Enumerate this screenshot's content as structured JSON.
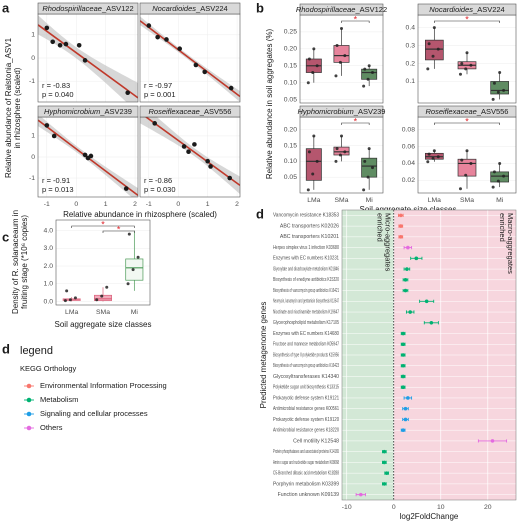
{
  "chart_data": [
    {
      "type": "scatter",
      "panel_label": "a",
      "x_label": "Relative abundance in rhizosphere (scaled)",
      "y_label": [
        "Relative abundance of Ralstonia_ASV1",
        "in rhizosphere (scaled)"
      ],
      "xlim": [
        -1.3,
        2.1
      ],
      "xticks": [
        -1,
        0,
        1,
        2
      ],
      "ylim": [
        -1.9,
        1.9
      ],
      "yticks": [
        -1,
        0,
        1
      ],
      "point_color": "#1a1a1a",
      "fit_color": "#c0392b",
      "band_color": "#bdbdbd",
      "facets": [
        {
          "title": "Rhodospirillaceae_ASV122",
          "x": [
            -1.0,
            -0.8,
            -0.55,
            -0.35,
            0.1,
            0.3,
            1.75
          ],
          "y": [
            1.3,
            0.7,
            0.55,
            0.6,
            0.55,
            -0.1,
            -1.5
          ],
          "annotations": [
            "r = -0.83",
            "p = 0.040"
          ]
        },
        {
          "title": "Nocardioides_ASV224",
          "x": [
            -1.0,
            -0.7,
            -0.4,
            0.05,
            0.6,
            0.9,
            1.8
          ],
          "y": [
            1.4,
            0.9,
            0.8,
            0.4,
            -0.3,
            -0.6,
            -1.3
          ],
          "annotations": [
            "r = -0.97",
            "p = 0.001"
          ]
        },
        {
          "title": "Hyphomicrobium_ASV239",
          "x": [
            -1.0,
            -0.75,
            0.3,
            0.4,
            0.5,
            1.7
          ],
          "y": [
            1.5,
            1.0,
            0.1,
            -0.05,
            0.05,
            -1.5
          ],
          "annotations": [
            "r = -0.91",
            "p = 0.013"
          ]
        },
        {
          "title": "Roseiflexaceae_ASV556",
          "x": [
            -0.8,
            0.2,
            0.35,
            0.55,
            1.0,
            1.1,
            1.75
          ],
          "y": [
            1.6,
            0.5,
            0.25,
            0.6,
            -0.2,
            -0.45,
            -1.0
          ],
          "annotations": [
            "r = -0.86",
            "p = 0.030"
          ]
        }
      ]
    },
    {
      "type": "box",
      "panel_label": "b",
      "x_label": "Soil aggregate size classes",
      "y_label": "Relative abundance in soil aggregates (%)",
      "categories": [
        "LMa",
        "SMa",
        "Mi"
      ],
      "fill_colors": [
        "#b5566e",
        "#e7849c",
        "#5f8c62"
      ],
      "stroke_colors": [
        "#333333",
        "#333333",
        "#333333"
      ],
      "facets": [
        {
          "title": "Rhodospirillaceae_ASV122",
          "ylim": [
            0.04,
            0.3
          ],
          "yticks": [
            0.05,
            {
              "value": 0.1,
              "label": "0.10"
            },
            0.15,
            {
              "value": 0.2,
              "label": "0.20"
            },
            0.25
          ],
          "groups": [
            {
              "box": [
                0.1,
                0.13,
                0.15,
                0.17,
                0.2
              ],
              "points": [
                0.1,
                0.13,
                0.15,
                0.17,
                0.2
              ]
            },
            {
              "box": [
                0.12,
                0.16,
                0.18,
                0.21,
                0.26
              ],
              "points": [
                0.12,
                0.16,
                0.18,
                0.21,
                0.26
              ]
            },
            {
              "box": [
                0.09,
                0.11,
                0.13,
                0.14,
                0.15
              ],
              "points": [
                0.09,
                0.11,
                0.13,
                0.14,
                0.15
              ]
            }
          ],
          "significance": [
            {
              "pair": [
                "SMa",
                "Mi"
              ],
              "label": "*"
            }
          ]
        },
        {
          "title": "Nocardioides_ASV224",
          "ylim": [
            -0.02,
            0.47
          ],
          "yticks": [
            0.1,
            0.2,
            0.3,
            0.4
          ],
          "groups": [
            {
              "box": [
                0.17,
                0.22,
                0.28,
                0.33,
                0.4
              ],
              "points": [
                0.17,
                0.24,
                0.28,
                0.31,
                0.4
              ]
            },
            {
              "box": [
                0.14,
                0.17,
                0.19,
                0.21,
                0.26
              ],
              "points": [
                0.14,
                0.17,
                0.19,
                0.2,
                0.26
              ]
            },
            {
              "box": [
                0.0,
                0.03,
                0.05,
                0.1,
                0.15
              ],
              "points": [
                0.0,
                0.04,
                0.05,
                0.09,
                0.15
              ]
            }
          ],
          "significance": [
            {
              "pair": [
                "LMa",
                "Mi"
              ],
              "label": "*"
            }
          ]
        },
        {
          "title": "Hyphomicrobium_ASV239",
          "ylim": [
            0.0,
            0.24
          ],
          "yticks": [
            0.05,
            {
              "value": 0.1,
              "label": "0.10"
            },
            0.15,
            {
              "value": 0.2,
              "label": "0.20"
            }
          ],
          "groups": [
            {
              "box": [
                0.01,
                0.04,
                0.1,
                0.14,
                0.18
              ],
              "points": [
                0.01,
                0.06,
                0.1,
                0.13,
                0.18
              ]
            },
            {
              "box": [
                0.1,
                0.12,
                0.13,
                0.145,
                0.18
              ],
              "points": [
                0.1,
                0.12,
                0.13,
                0.14,
                0.18
              ]
            },
            {
              "box": [
                0.01,
                0.05,
                0.085,
                0.11,
                0.14
              ],
              "points": [
                0.01,
                0.05,
                0.08,
                0.1,
                0.14
              ]
            }
          ],
          "significance": [
            {
              "pair": [
                "SMa",
                "Mi"
              ],
              "label": "*"
            }
          ]
        },
        {
          "title": "Roseiflexaceae_ASV556",
          "ylim": [
            0.005,
            0.095
          ],
          "yticks": [
            0.02,
            0.04,
            0.06,
            0.08
          ],
          "groups": [
            {
              "box": [
                0.042,
                0.045,
                0.048,
                0.052,
                0.055
              ],
              "points": [
                0.042,
                0.046,
                0.048,
                0.051,
                0.055
              ]
            },
            {
              "box": [
                0.01,
                0.025,
                0.04,
                0.045,
                0.055
              ],
              "points": [
                0.01,
                0.026,
                0.04,
                0.044,
                0.055
              ]
            },
            {
              "box": [
                0.012,
                0.018,
                0.025,
                0.03,
                0.04
              ],
              "points": [
                0.012,
                0.019,
                0.025,
                0.03,
                0.04
              ]
            }
          ],
          "significance": [
            {
              "pair": [
                "LMa",
                "Mi"
              ],
              "label": "*"
            }
          ]
        }
      ]
    },
    {
      "type": "box",
      "panel_label": "c",
      "x_label": "Soil aggregate size classes",
      "y_label": [
        "Density of R. solanaceaum in",
        "fruiting stage (*10⁶ copies)"
      ],
      "categories": [
        "LMa",
        "SMa",
        "Mi"
      ],
      "fill_colors": [
        "#fdeef1",
        "#f2aabb",
        "#f2f8f2"
      ],
      "stroke_colors": [
        "#e06c84",
        "#d9607a",
        "#4b9a57"
      ],
      "ylim": [
        -0.2,
        4.6
      ],
      "yticks": [
        {
          "value": 0,
          "label": "0.0"
        },
        {
          "value": 1,
          "label": "1.0"
        },
        {
          "value": 2,
          "label": "2.0"
        },
        {
          "value": 3,
          "label": "3.0"
        },
        {
          "value": 4,
          "label": "4.0"
        }
      ],
      "groups": [
        {
          "box": [
            0.0,
            0.05,
            0.1,
            0.15,
            0.25
          ],
          "points": [
            0.05,
            0.1,
            0.2,
            0.6
          ]
        },
        {
          "box": [
            0.0,
            0.05,
            0.15,
            0.35,
            0.8
          ],
          "points": [
            0.1,
            0.3,
            0.8
          ]
        },
        {
          "box": [
            0.6,
            1.2,
            1.9,
            2.4,
            4.0
          ],
          "points": [
            1.0,
            1.8,
            2.5,
            3.8
          ]
        }
      ],
      "significance": [
        {
          "pair": [
            "LMa",
            "Mi"
          ],
          "label": "*"
        },
        {
          "pair": [
            "SMa",
            "Mi"
          ],
          "label": "*"
        }
      ]
    },
    {
      "type": "dot_error",
      "panel_label": "d",
      "x_label": "log2FoldChange",
      "y_label": "Predicted metagenome genes",
      "left_note": [
        "Micro-aggregates",
        "enriched"
      ],
      "right_note": [
        "Macro-aggregates",
        "enriched"
      ],
      "legend_title": "legend",
      "legend_subtitle": "KEGG Orthology",
      "xlim": [
        -11,
        26
      ],
      "xticks": [
        -10,
        0,
        10,
        20
      ],
      "categories": [
        "Vancomycin resistance K18353",
        "ABC transporters K02026",
        "ABC transporters K10201",
        "Herpes simplex virus 1 infection K03680",
        "Enzymes with EC numbers K10231",
        "Glyoxylate and dicarboxylate metabolism K01846",
        "Biosynthesis of enediyne antibiotics K15320",
        "Biosynthesis of vancomycin group antibiotics K16421",
        "Neomycin, kanamycin and gentamicin biosynthesis K13547",
        "Nicotinate and nicotinamide metabolism K19647",
        "Glycerophospholipid metabolism K17105",
        "Enzymes with EC numbers K14680",
        "Fructose and mannose metabolism K05947",
        "Biosynthesis of type II polyketide products K15956",
        "Biosynthesis of vancomycin group antibiotics K16423",
        "Glycosyltransferases K14340",
        "Polyketide sugar unit biosynthesis K13315",
        "Prokaryotic defense system K19121",
        "Antimicrobial resistance genes K00561",
        "Prokaryotic defense system K19120",
        "Antimicrobial resistance genes K18220",
        "Cell motility K12548",
        "Protein phosphatases and associated proteins K14165",
        "Amino sugar and nucleotide sugar metabolism K08068",
        "C5-Branched dibasic acid metabolism K18288",
        "Porphyrin metabolism K03399",
        "Function unknown K09139"
      ],
      "series": [
        {
          "name": "Environmental Information Processing",
          "color": "#f8766d",
          "values": [
            1.5,
            1.5,
            1.5,
            null,
            null,
            null,
            null,
            null,
            null,
            null,
            null,
            null,
            null,
            null,
            null,
            null,
            null,
            null,
            null,
            null,
            null,
            null,
            null,
            null,
            null,
            null,
            null
          ],
          "errors": [
            0.5,
            0.4,
            0.4,
            null,
            null,
            null,
            null,
            null,
            null,
            null,
            null,
            null,
            null,
            null,
            null,
            null,
            null,
            null,
            null,
            null,
            null,
            null,
            null,
            null,
            null,
            null,
            null
          ]
        },
        {
          "name": "Metabolism",
          "color": "#00b272",
          "values": [
            null,
            null,
            null,
            null,
            4.8,
            2.8,
            2.5,
            2.5,
            7.0,
            3.5,
            8.0,
            2.0,
            2.0,
            2.0,
            2.0,
            2.0,
            2.0,
            null,
            null,
            null,
            null,
            null,
            -2.0,
            -2.0,
            -1.5,
            -2.0,
            null
          ],
          "errors": [
            null,
            null,
            null,
            null,
            1.2,
            0.6,
            0.5,
            0.5,
            1.5,
            0.8,
            1.5,
            0.4,
            0.4,
            0.4,
            0.4,
            0.4,
            0.4,
            null,
            null,
            null,
            null,
            null,
            0.4,
            0.4,
            0.4,
            0.4,
            null
          ]
        },
        {
          "name": "Signaling and cellular processes",
          "color": "#1f9ee6",
          "values": [
            null,
            null,
            null,
            null,
            null,
            null,
            null,
            null,
            null,
            null,
            null,
            null,
            null,
            null,
            null,
            null,
            null,
            3.0,
            2.5,
            2.5,
            2.0,
            null,
            null,
            null,
            null,
            null,
            null
          ],
          "errors": [
            null,
            null,
            null,
            null,
            null,
            null,
            null,
            null,
            null,
            null,
            null,
            null,
            null,
            null,
            null,
            null,
            null,
            0.8,
            0.6,
            0.6,
            0.4,
            null,
            null,
            null,
            null,
            null,
            null
          ]
        },
        {
          "name": "Others",
          "color": "#e46be0",
          "values": [
            null,
            null,
            null,
            3.0,
            null,
            null,
            null,
            null,
            null,
            null,
            null,
            null,
            null,
            null,
            null,
            null,
            null,
            null,
            null,
            null,
            null,
            21.0,
            null,
            null,
            null,
            null,
            -7.0
          ],
          "errors": [
            null,
            null,
            null,
            0.8,
            null,
            null,
            null,
            null,
            null,
            null,
            null,
            null,
            null,
            null,
            null,
            null,
            null,
            null,
            null,
            null,
            null,
            3.0,
            null,
            null,
            null,
            null,
            1.0
          ]
        }
      ]
    }
  ]
}
